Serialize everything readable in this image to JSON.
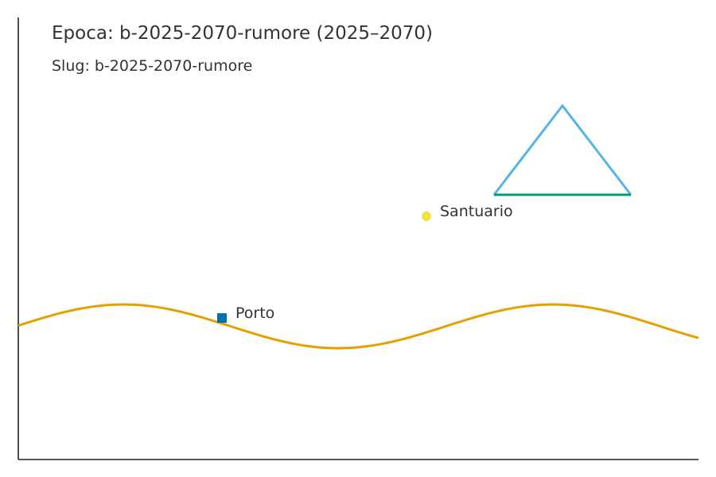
{
  "title": "Epoca: b-2025-2070-rumore (2025–2070)",
  "subtitle": "Slug: b-2025-2070-rumore",
  "colors": {
    "text": "#333333",
    "axis": "#222222",
    "river": "#E69F00",
    "mountain_slope": "#56B4E9",
    "mountain_base": "#009E73",
    "port_marker": "#0072B2",
    "sanctuary_marker": "#F0E442"
  },
  "places": [
    {
      "label": "Porto",
      "marker": "square",
      "color": "#0072B2"
    },
    {
      "label": "Santuario",
      "marker": "circle",
      "color": "#F0E442"
    }
  ]
}
